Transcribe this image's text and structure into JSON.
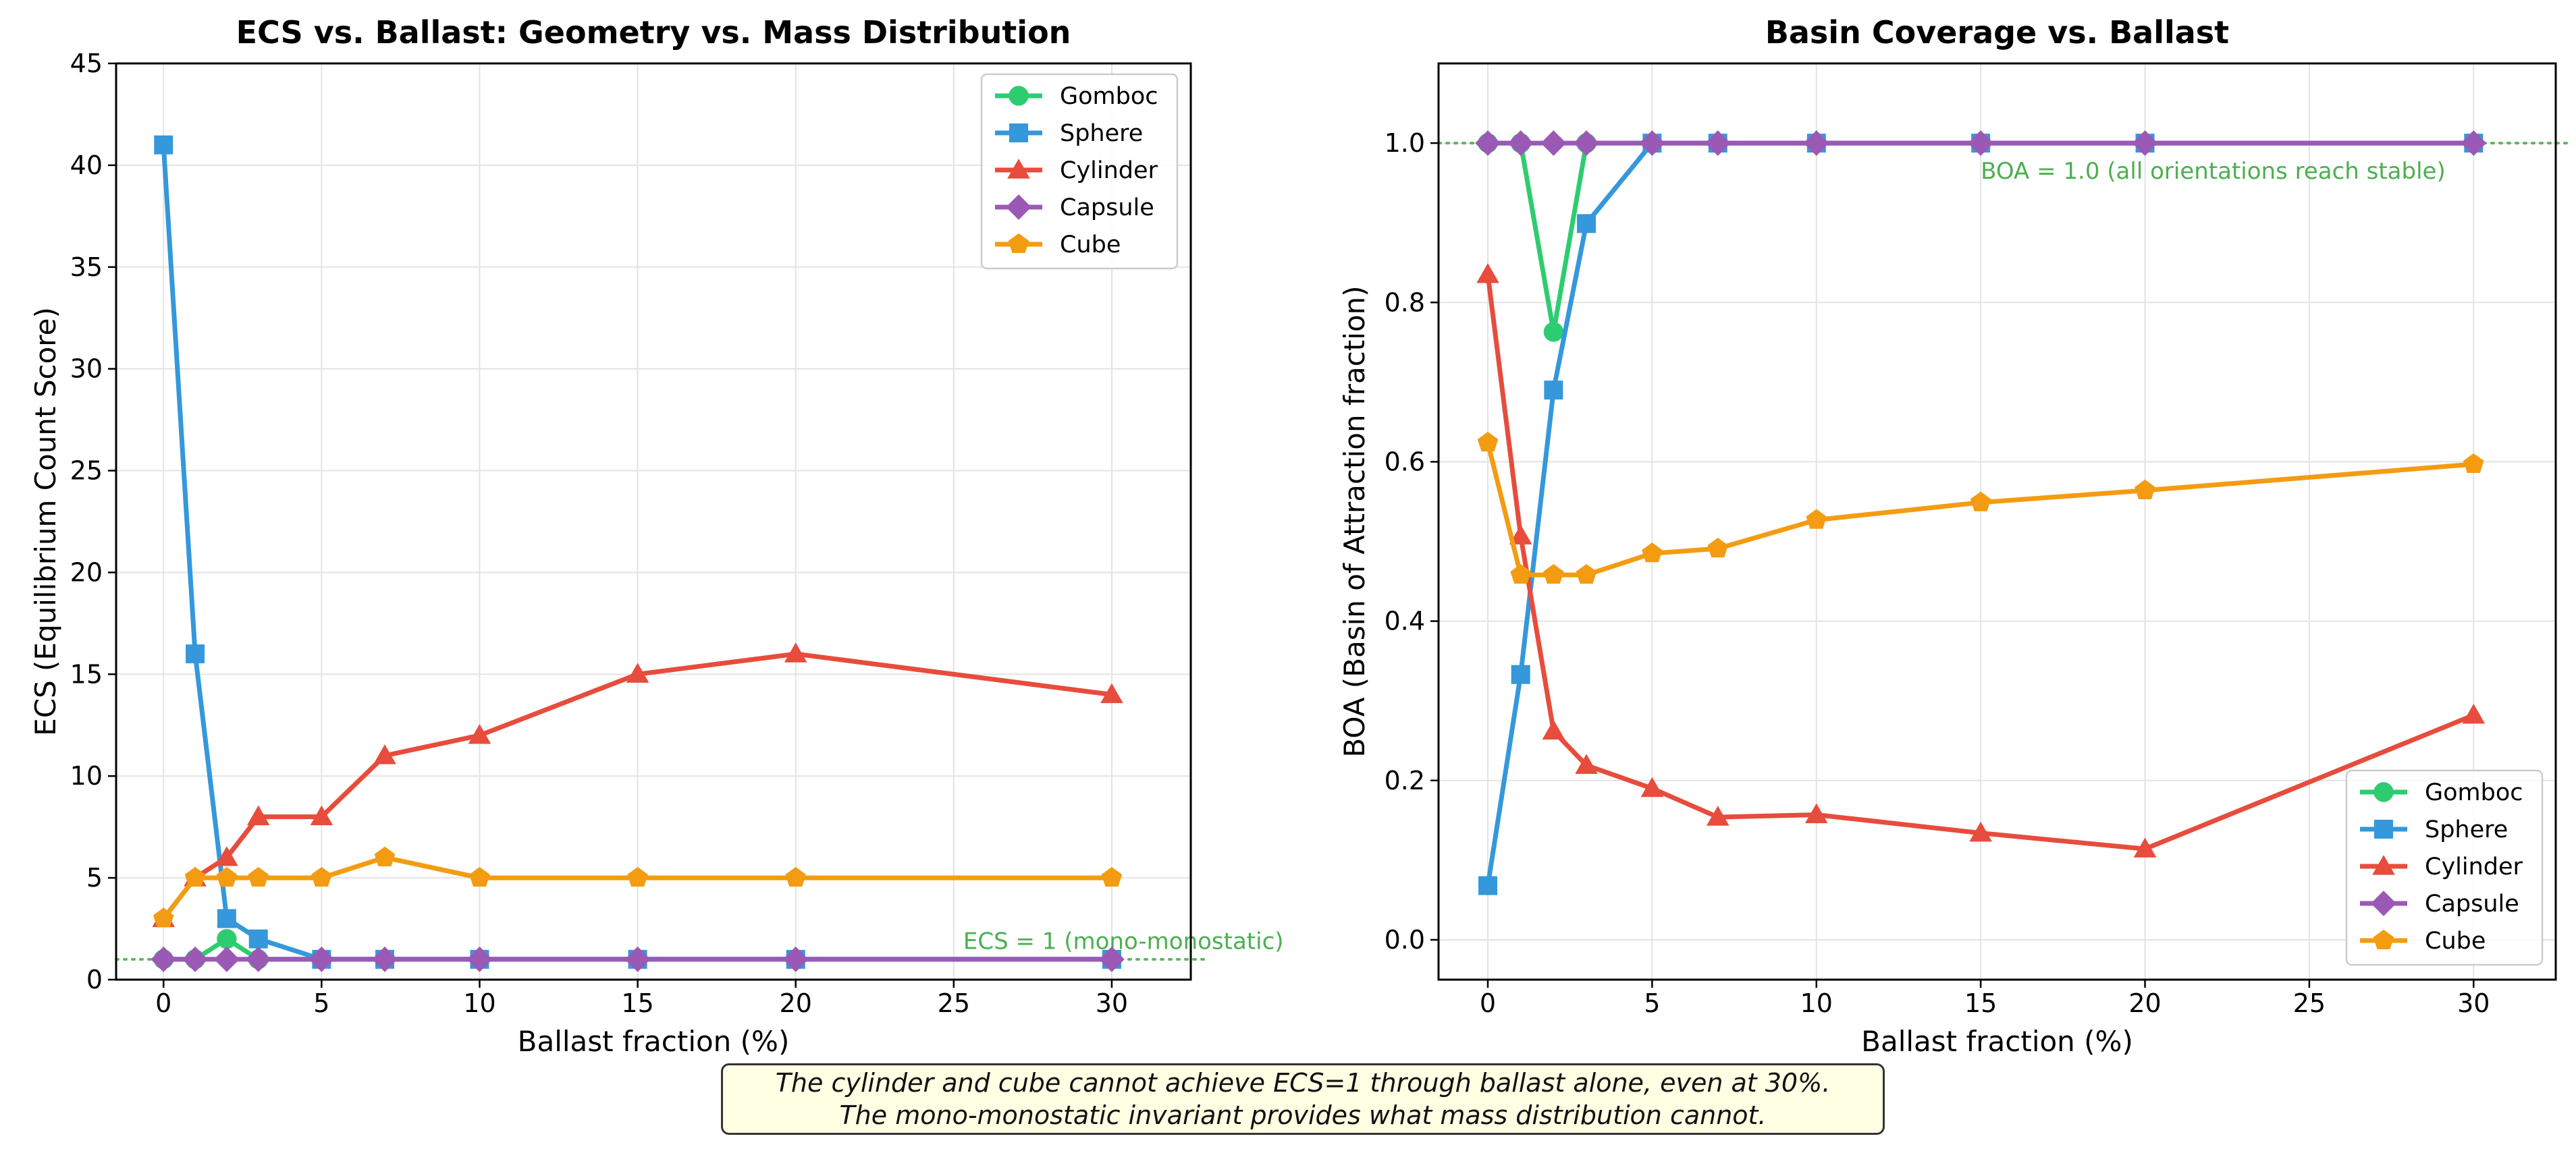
{
  "figure": {
    "footnote": {
      "line1": "The cylinder and cube cannot achieve ECS=1 through ballast alone, even at 30%.",
      "line2": "The mono-monostatic invariant provides what mass distribution cannot."
    }
  },
  "chart_data": [
    {
      "type": "line",
      "title": "ECS vs. Ballast: Geometry vs. Mass Distribution",
      "xlabel": "Ballast fraction (%)",
      "ylabel": "ECS (Equilibrium Count Score)",
      "xlim": [
        -1.5,
        32.5
      ],
      "ylim": [
        0,
        45
      ],
      "xticks": [
        0,
        5,
        10,
        15,
        20,
        25,
        30
      ],
      "yticks": [
        0,
        5,
        10,
        15,
        20,
        25,
        30,
        35,
        40,
        45
      ],
      "grid": true,
      "legend_position": "top-right",
      "reference_line": {
        "y": 1,
        "color": "#4caf50",
        "label": "ECS = 1 (mono-monostatic)",
        "label_x": 25.3,
        "label_y": 1.5
      },
      "series": [
        {
          "name": "Gomboc",
          "color": "#2ecc71",
          "marker": "circle",
          "x": [
            0,
            1,
            2,
            3,
            5,
            7,
            10,
            15,
            20,
            30
          ],
          "y": [
            1,
            1,
            2,
            1,
            1,
            1,
            1,
            1,
            1,
            1
          ]
        },
        {
          "name": "Sphere",
          "color": "#3498db",
          "marker": "square",
          "x": [
            0,
            1,
            2,
            3,
            5,
            7,
            10,
            15,
            20,
            30
          ],
          "y": [
            41,
            16,
            3,
            2,
            1,
            1,
            1,
            1,
            1,
            1
          ]
        },
        {
          "name": "Cylinder",
          "color": "#e74c3c",
          "marker": "triangle",
          "x": [
            0,
            1,
            2,
            3,
            5,
            7,
            10,
            15,
            20,
            30
          ],
          "y": [
            3,
            5,
            6,
            8,
            8,
            11,
            12,
            15,
            16,
            14
          ]
        },
        {
          "name": "Capsule",
          "color": "#9b59b6",
          "marker": "diamond",
          "x": [
            0,
            1,
            2,
            3,
            5,
            7,
            10,
            15,
            20,
            30
          ],
          "y": [
            1,
            1,
            1,
            1,
            1,
            1,
            1,
            1,
            1,
            1
          ]
        },
        {
          "name": "Cube",
          "color": "#f39c12",
          "marker": "pentagon",
          "x": [
            0,
            1,
            2,
            3,
            5,
            7,
            10,
            15,
            20,
            30
          ],
          "y": [
            3,
            5,
            5,
            5,
            5,
            6,
            5,
            5,
            5,
            5
          ]
        }
      ]
    },
    {
      "type": "line",
      "title": "Basin Coverage vs. Ballast",
      "xlabel": "Ballast fraction (%)",
      "ylabel": "BOA (Basin of Attraction fraction)",
      "xlim": [
        -1.5,
        32.5
      ],
      "ylim": [
        -0.05,
        1.1
      ],
      "xticks": [
        0,
        5,
        10,
        15,
        20,
        25,
        30
      ],
      "yticks": [
        0.0,
        0.2,
        0.4,
        0.6,
        0.8,
        1.0
      ],
      "grid": true,
      "legend_position": "bottom-right",
      "reference_line": {
        "y": 1.0,
        "color": "#4caf50",
        "label": "BOA = 1.0 (all orientations reach stable)",
        "label_x": 15.0,
        "label_y": 0.955
      },
      "series": [
        {
          "name": "Gomboc",
          "color": "#2ecc71",
          "marker": "circle",
          "x": [
            0,
            1,
            2,
            3,
            5,
            7,
            10,
            15,
            20,
            30
          ],
          "y": [
            1.0,
            1.0,
            0.763,
            1.0,
            1.0,
            1.0,
            1.0,
            1.0,
            1.0,
            1.0
          ]
        },
        {
          "name": "Sphere",
          "color": "#3498db",
          "marker": "square",
          "x": [
            0,
            1,
            2,
            3,
            5,
            7,
            10,
            15,
            20,
            30
          ],
          "y": [
            0.068,
            0.333,
            0.69,
            0.899,
            1.0,
            1.0,
            1.0,
            1.0,
            1.0,
            1.0
          ]
        },
        {
          "name": "Cylinder",
          "color": "#e74c3c",
          "marker": "triangle",
          "x": [
            0,
            1,
            2,
            3,
            5,
            7,
            10,
            15,
            20,
            30
          ],
          "y": [
            0.835,
            0.507,
            0.262,
            0.219,
            0.19,
            0.154,
            0.157,
            0.134,
            0.114,
            0.282
          ]
        },
        {
          "name": "Capsule",
          "color": "#9b59b6",
          "marker": "diamond",
          "x": [
            0,
            1,
            2,
            3,
            5,
            7,
            10,
            15,
            20,
            30
          ],
          "y": [
            1.0,
            1.0,
            1.0,
            1.0,
            1.0,
            1.0,
            1.0,
            1.0,
            1.0,
            1.0
          ]
        },
        {
          "name": "Cube",
          "color": "#f39c12",
          "marker": "pentagon",
          "x": [
            0,
            1,
            2,
            3,
            5,
            7,
            10,
            15,
            20,
            30
          ],
          "y": [
            0.624,
            0.458,
            0.458,
            0.458,
            0.485,
            0.491,
            0.527,
            0.549,
            0.564,
            0.597
          ]
        }
      ]
    }
  ]
}
